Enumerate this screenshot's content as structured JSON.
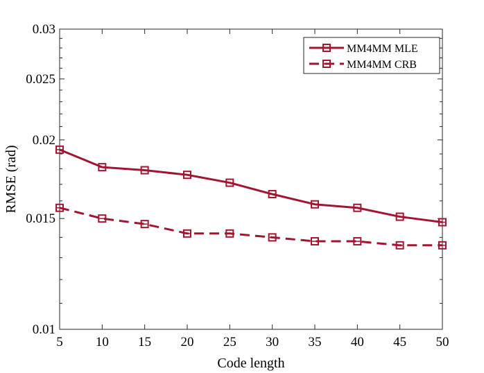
{
  "chart_data": {
    "type": "line",
    "y_scale": "log",
    "xlabel": "Code length",
    "ylabel": "RMSE (rad)",
    "xlim": [
      5,
      50
    ],
    "ylim": [
      0.01,
      0.03
    ],
    "x_ticks": [
      5,
      10,
      15,
      20,
      25,
      30,
      35,
      40,
      45,
      50
    ],
    "x_tick_labels": [
      "5",
      "10",
      "15",
      "20",
      "25",
      "30",
      "35",
      "40",
      "45",
      "50"
    ],
    "y_ticks": [
      0.01,
      0.015,
      0.02,
      0.025,
      0.03
    ],
    "y_tick_labels": [
      "0.01",
      "0.015",
      "0.02",
      "0.025",
      "0.03"
    ],
    "y_minor_ticks": [
      0.011,
      0.012,
      0.013,
      0.014,
      0.016,
      0.017,
      0.018,
      0.019,
      0.021,
      0.022,
      0.023,
      0.024,
      0.026,
      0.027,
      0.028,
      0.029
    ],
    "x": [
      5,
      10,
      15,
      20,
      25,
      30,
      35,
      40,
      45,
      50
    ],
    "series": [
      {
        "name": "MM4MM MLE",
        "style": "solid",
        "marker": "square",
        "color": "#A2142F",
        "values": [
          0.0193,
          0.0181,
          0.0179,
          0.0176,
          0.0171,
          0.0164,
          0.0158,
          0.0156,
          0.0151,
          0.0148
        ]
      },
      {
        "name": "MM4MM CRB",
        "style": "dashed",
        "marker": "square",
        "color": "#A2142F",
        "values": [
          0.0156,
          0.015,
          0.0147,
          0.0142,
          0.0142,
          0.014,
          0.0138,
          0.0138,
          0.0136,
          0.0136
        ]
      }
    ],
    "legend_position": "top-right",
    "grid": false
  }
}
